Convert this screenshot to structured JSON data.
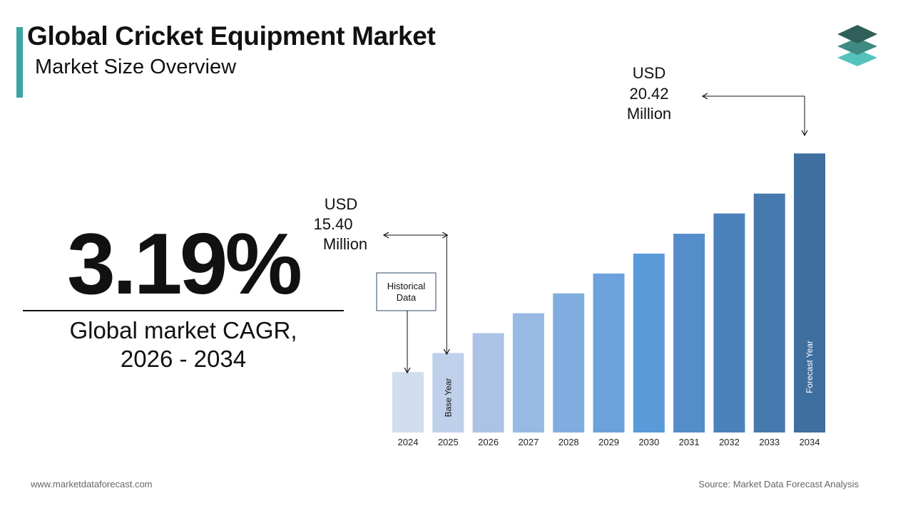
{
  "header": {
    "title": "Global Cricket Equipment Market",
    "subtitle": "Market Size Overview"
  },
  "logo": {
    "icon": "stacked-layers-logo-icon",
    "colors": [
      "#2f5f58",
      "#3f8a82",
      "#55c3bb"
    ]
  },
  "cagr": {
    "value": "3.19%",
    "label_line1": "Global market CAGR,",
    "label_line2": "2026 - 2034"
  },
  "footer": {
    "website": "www.marketdataforecast.com",
    "source": "Source: Market Data Forecast Analysis"
  },
  "colors": {
    "accent": "#3aa6a2",
    "bars": [
      "#d1dcee",
      "#bfd0ea",
      "#abc4e6",
      "#98b9e2",
      "#80addf",
      "#6ca2dc",
      "#5a9ad8",
      "#548dca",
      "#4c82bc",
      "#467aae",
      "#3f6f9f",
      "#39638f"
    ]
  },
  "chart_data": {
    "type": "bar",
    "categories": [
      "2024",
      "2025",
      "2026",
      "2027",
      "2028",
      "2029",
      "2030",
      "2031",
      "2032",
      "2033",
      "2034"
    ],
    "values": [
      14.92,
      15.4,
      15.9,
      16.4,
      16.9,
      17.4,
      17.9,
      18.4,
      18.91,
      19.41,
      20.42
    ],
    "units": "USD Million",
    "ylim": [
      13.4,
      21.0
    ],
    "grid": false,
    "annotations": {
      "base": {
        "line1": "USD",
        "line2": "15.40",
        "line3": "Million",
        "category": "2025"
      },
      "end": {
        "line1": "USD",
        "line2": "20.42",
        "line3": "Million",
        "category": "2034"
      },
      "historical": {
        "line1": "Historical",
        "line2": "Data",
        "category": "2024"
      },
      "base_year_label": "Base Year",
      "forecast_year_label": "Forecast Year"
    }
  }
}
